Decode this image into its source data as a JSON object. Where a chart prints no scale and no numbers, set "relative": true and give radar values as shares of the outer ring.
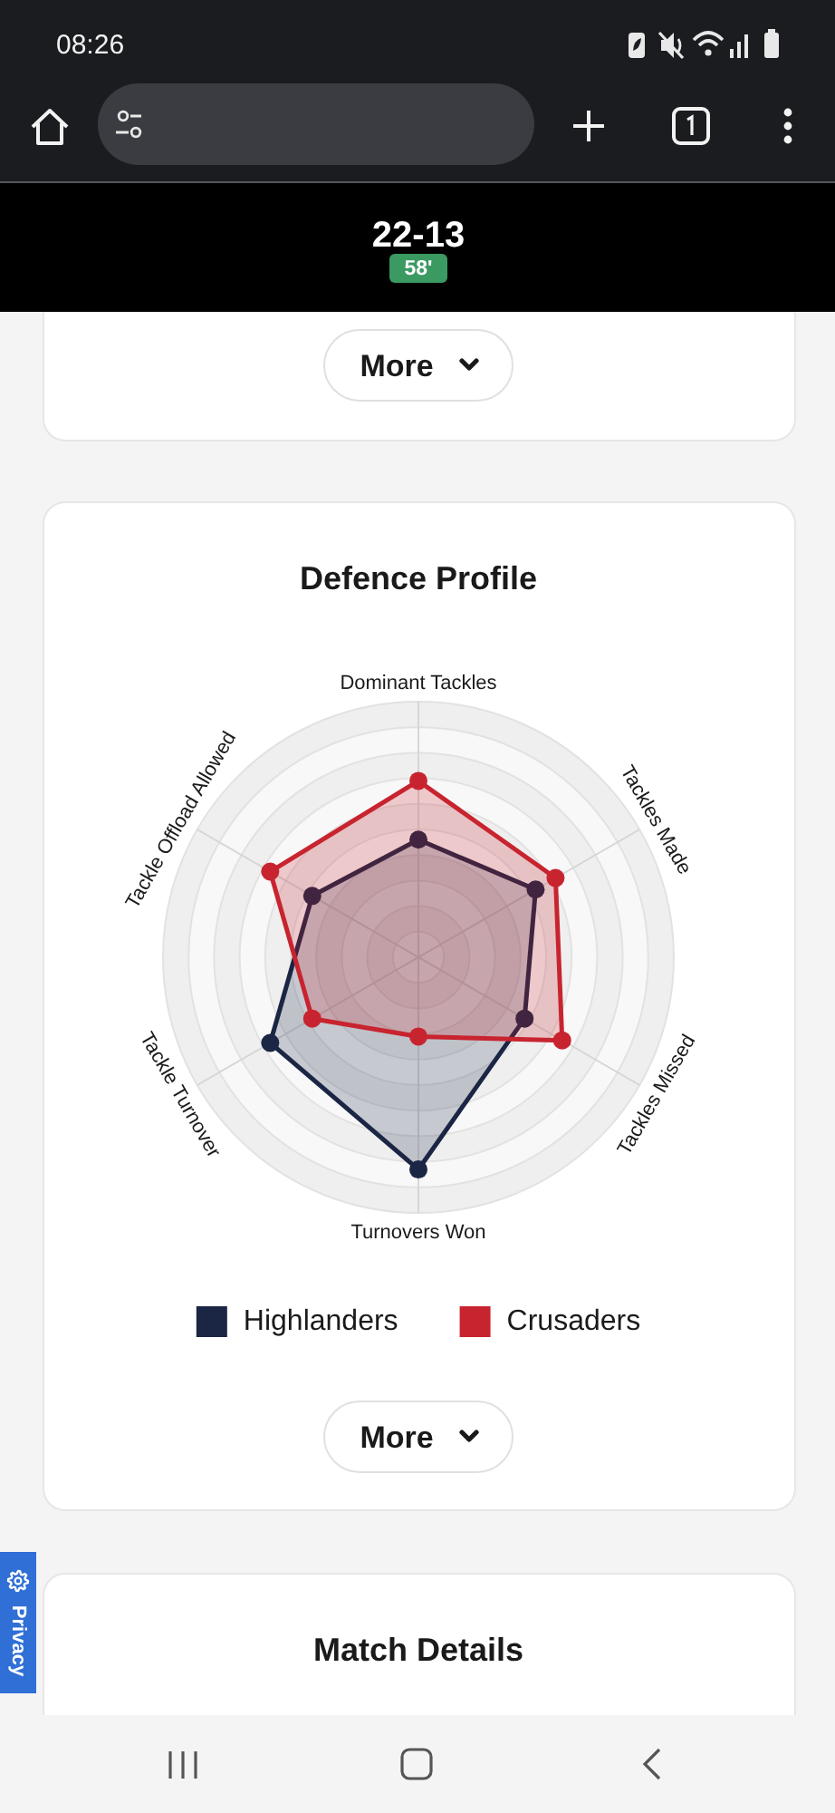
{
  "chart_data": {
    "type": "radar",
    "title": "Defence Profile",
    "categories": [
      "Dominant Tackles",
      "Tackles Made",
      "Tackles Missed",
      "Turnovers Won",
      "Tackle Turnover",
      "Tackle Offload Allowed"
    ],
    "series": [
      {
        "name": "Highlanders",
        "color": "#1b2544",
        "values": [
          0.46,
          0.53,
          0.48,
          0.83,
          0.67,
          0.48
        ]
      },
      {
        "name": "Crusaders",
        "color": "#c8242f",
        "values": [
          0.69,
          0.62,
          0.65,
          0.31,
          0.48,
          0.67
        ]
      }
    ],
    "relative": true,
    "grid": true,
    "marker": "circle",
    "legend": "bottom",
    "annotations": [
      "08:26",
      "22-13",
      "58'",
      "More",
      "More",
      "Match Details",
      "Privacy"
    ]
  }
}
